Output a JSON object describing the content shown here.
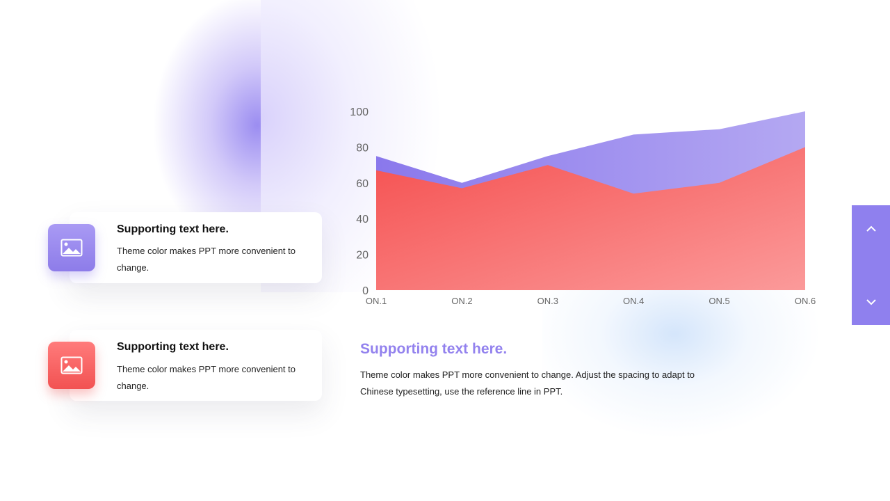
{
  "cards": [
    {
      "title": "Supporting text here.",
      "desc": "Theme color makes PPT more convenient to change.",
      "icon": "image-icon",
      "color": "#9a8af0"
    },
    {
      "title": "Supporting text here.",
      "desc": "Theme color makes PPT more convenient to change.",
      "icon": "image-icon",
      "color": "#f45b5b"
    }
  ],
  "main": {
    "title": "Supporting text here.",
    "desc": "Theme color makes PPT more convenient to change. Adjust the spacing to adapt to Chinese typesetting, use the reference line in PPT."
  },
  "nav": {
    "up_icon": "chevron-up-icon",
    "down_icon": "chevron-down-icon",
    "color": "#8f80ee"
  },
  "chart_data": {
    "type": "area",
    "categories": [
      "ON.1",
      "ON.2",
      "ON.3",
      "ON.4",
      "ON.5",
      "ON.6"
    ],
    "ylim": [
      0,
      100
    ],
    "yticks": [
      0,
      20,
      40,
      60,
      80,
      100
    ],
    "series": [
      {
        "values": [
          75,
          60,
          75,
          87,
          90,
          100
        ],
        "color": "#9888ee"
      },
      {
        "values": [
          67,
          57,
          70,
          54,
          60,
          80
        ],
        "color": "#f55a5a"
      }
    ],
    "grid": false,
    "legend": "none"
  }
}
